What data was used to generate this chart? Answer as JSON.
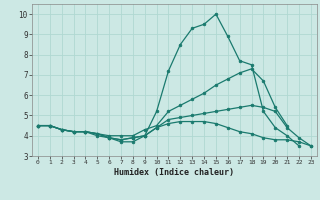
{
  "xlabel": "Humidex (Indice chaleur)",
  "bg_color": "#cce8e4",
  "line_color": "#1a7a6e",
  "grid_color": "#b0d8d2",
  "xlim": [
    -0.5,
    23.5
  ],
  "ylim": [
    3.0,
    10.5
  ],
  "xticks": [
    0,
    1,
    2,
    3,
    4,
    5,
    6,
    7,
    8,
    9,
    10,
    11,
    12,
    13,
    14,
    15,
    16,
    17,
    18,
    19,
    20,
    21,
    22,
    23
  ],
  "yticks": [
    3,
    4,
    5,
    6,
    7,
    8,
    9,
    10
  ],
  "series": [
    [
      4.5,
      4.5,
      4.3,
      4.2,
      4.2,
      4.0,
      3.9,
      3.7,
      3.7,
      4.0,
      5.2,
      7.2,
      8.5,
      9.3,
      9.5,
      10.0,
      8.9,
      7.7,
      7.5,
      5.2,
      4.4,
      4.0,
      3.5,
      null
    ],
    [
      4.5,
      4.5,
      4.3,
      4.2,
      4.2,
      4.1,
      4.0,
      4.0,
      4.0,
      4.3,
      4.5,
      5.2,
      5.5,
      5.8,
      6.1,
      6.5,
      6.8,
      7.1,
      7.3,
      6.7,
      5.4,
      4.5,
      null,
      null
    ],
    [
      4.5,
      4.5,
      4.3,
      4.2,
      4.2,
      4.1,
      3.9,
      3.8,
      3.9,
      4.0,
      4.4,
      4.8,
      4.9,
      5.0,
      5.1,
      5.2,
      5.3,
      5.4,
      5.5,
      5.4,
      5.2,
      4.4,
      3.9,
      3.5
    ],
    [
      4.5,
      4.5,
      4.3,
      4.2,
      4.2,
      4.1,
      3.9,
      3.8,
      3.9,
      4.0,
      4.4,
      4.6,
      4.7,
      4.7,
      4.7,
      4.6,
      4.4,
      4.2,
      4.1,
      3.9,
      3.8,
      3.8,
      3.7,
      3.5
    ]
  ]
}
